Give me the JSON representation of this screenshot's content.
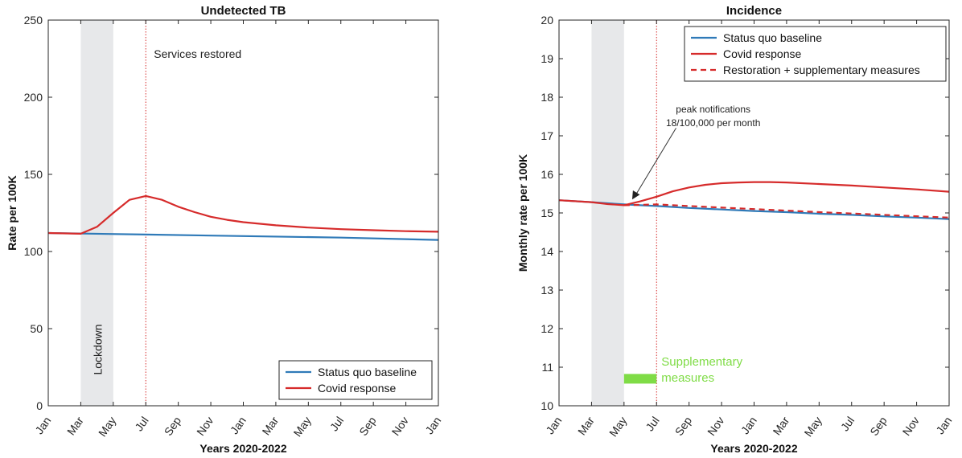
{
  "chart_data": [
    {
      "type": "line",
      "title": "Undetected TB",
      "xlabel": "Years 2020-2022",
      "ylabel": "Rate per 100K",
      "ylim": [
        0,
        250
      ],
      "yticks": [
        0,
        50,
        100,
        150,
        200,
        250
      ],
      "x_tick_labels": [
        "Jan",
        "Mar",
        "May",
        "Jul",
        "Sep",
        "Nov",
        "Jan",
        "Mar",
        "May",
        "Jul",
        "Sep",
        "Nov",
        "Jan"
      ],
      "x_unit": "months since Jan 2020",
      "xlim": [
        0,
        24
      ],
      "lockdown_band": [
        2,
        4
      ],
      "lockdown_label": "Lockdown",
      "restored_line_x": 6,
      "restored_label": "Services restored",
      "series": [
        {
          "name": "Status quo baseline",
          "color": "#2f7ab8",
          "points": [
            [
              0,
              112
            ],
            [
              6,
              111
            ],
            [
              12,
              110
            ],
            [
              18,
              109
            ],
            [
              24,
              107.5
            ]
          ]
        },
        {
          "name": "Covid response",
          "color": "#d62b2b",
          "points": [
            [
              0,
              112
            ],
            [
              2,
              111.5
            ],
            [
              3,
              116
            ],
            [
              4,
              125
            ],
            [
              5,
              133.5
            ],
            [
              6,
              136
            ],
            [
              7,
              133.5
            ],
            [
              8,
              129
            ],
            [
              9,
              125.5
            ],
            [
              10,
              122.5
            ],
            [
              11,
              120.5
            ],
            [
              12,
              119
            ],
            [
              14,
              117
            ],
            [
              16,
              115.5
            ],
            [
              18,
              114.5
            ],
            [
              20,
              113.8
            ],
            [
              22,
              113.2
            ],
            [
              24,
              112.8
            ]
          ]
        }
      ],
      "legend_position": "bottom-right"
    },
    {
      "type": "line",
      "title": "Incidence",
      "xlabel": "Years 2020-2022",
      "ylabel": "Monthly rate per 100K",
      "ylim": [
        10,
        20
      ],
      "yticks": [
        10,
        11,
        12,
        13,
        14,
        15,
        16,
        17,
        18,
        19,
        20
      ],
      "x_tick_labels": [
        "Jan",
        "Mar",
        "May",
        "Jul",
        "Sep",
        "Nov",
        "Jan",
        "Mar",
        "May",
        "Jul",
        "Sep",
        "Nov",
        "Jan"
      ],
      "x_unit": "months since Jan 2020",
      "xlim": [
        0,
        24
      ],
      "lockdown_band": [
        2,
        4
      ],
      "restored_line_x": 6,
      "annotation": [
        "peak notifications",
        "18/100,000 per month"
      ],
      "annotation_arrow_to": [
        4.5,
        15.35
      ],
      "supplementary_bar": [
        4,
        6,
        10.7
      ],
      "supplementary_label": [
        "Supplementary",
        "measures"
      ],
      "supplementary_color": "#7fdc46",
      "series": [
        {
          "name": "Status quo baseline",
          "color": "#2f7ab8",
          "dashed": false,
          "points": [
            [
              0,
              15.33
            ],
            [
              2,
              15.28
            ],
            [
              4,
              15.22
            ],
            [
              6,
              15.18
            ],
            [
              8,
              15.13
            ],
            [
              10,
              15.09
            ],
            [
              12,
              15.05
            ],
            [
              14,
              15.02
            ],
            [
              16,
              14.98
            ],
            [
              18,
              14.95
            ],
            [
              20,
              14.91
            ],
            [
              22,
              14.88
            ],
            [
              24,
              14.84
            ]
          ]
        },
        {
          "name": "Covid response",
          "color": "#d62b2b",
          "dashed": false,
          "points": [
            [
              0,
              15.33
            ],
            [
              2,
              15.28
            ],
            [
              3,
              15.23
            ],
            [
              4,
              15.2
            ],
            [
              5,
              15.3
            ],
            [
              6,
              15.42
            ],
            [
              7,
              15.56
            ],
            [
              8,
              15.66
            ],
            [
              9,
              15.73
            ],
            [
              10,
              15.77
            ],
            [
              11,
              15.79
            ],
            [
              12,
              15.8
            ],
            [
              13,
              15.8
            ],
            [
              14,
              15.79
            ],
            [
              16,
              15.75
            ],
            [
              18,
              15.71
            ],
            [
              20,
              15.66
            ],
            [
              22,
              15.61
            ],
            [
              24,
              15.55
            ]
          ]
        },
        {
          "name": "Restoration + supplementary measures",
          "color": "#d62b2b",
          "dashed": true,
          "points": [
            [
              4,
              15.2
            ],
            [
              6,
              15.22
            ],
            [
              8,
              15.18
            ],
            [
              12,
              15.1
            ],
            [
              16,
              15.02
            ],
            [
              20,
              14.95
            ],
            [
              24,
              14.88
            ]
          ]
        }
      ],
      "legend_position": "top-right"
    }
  ]
}
